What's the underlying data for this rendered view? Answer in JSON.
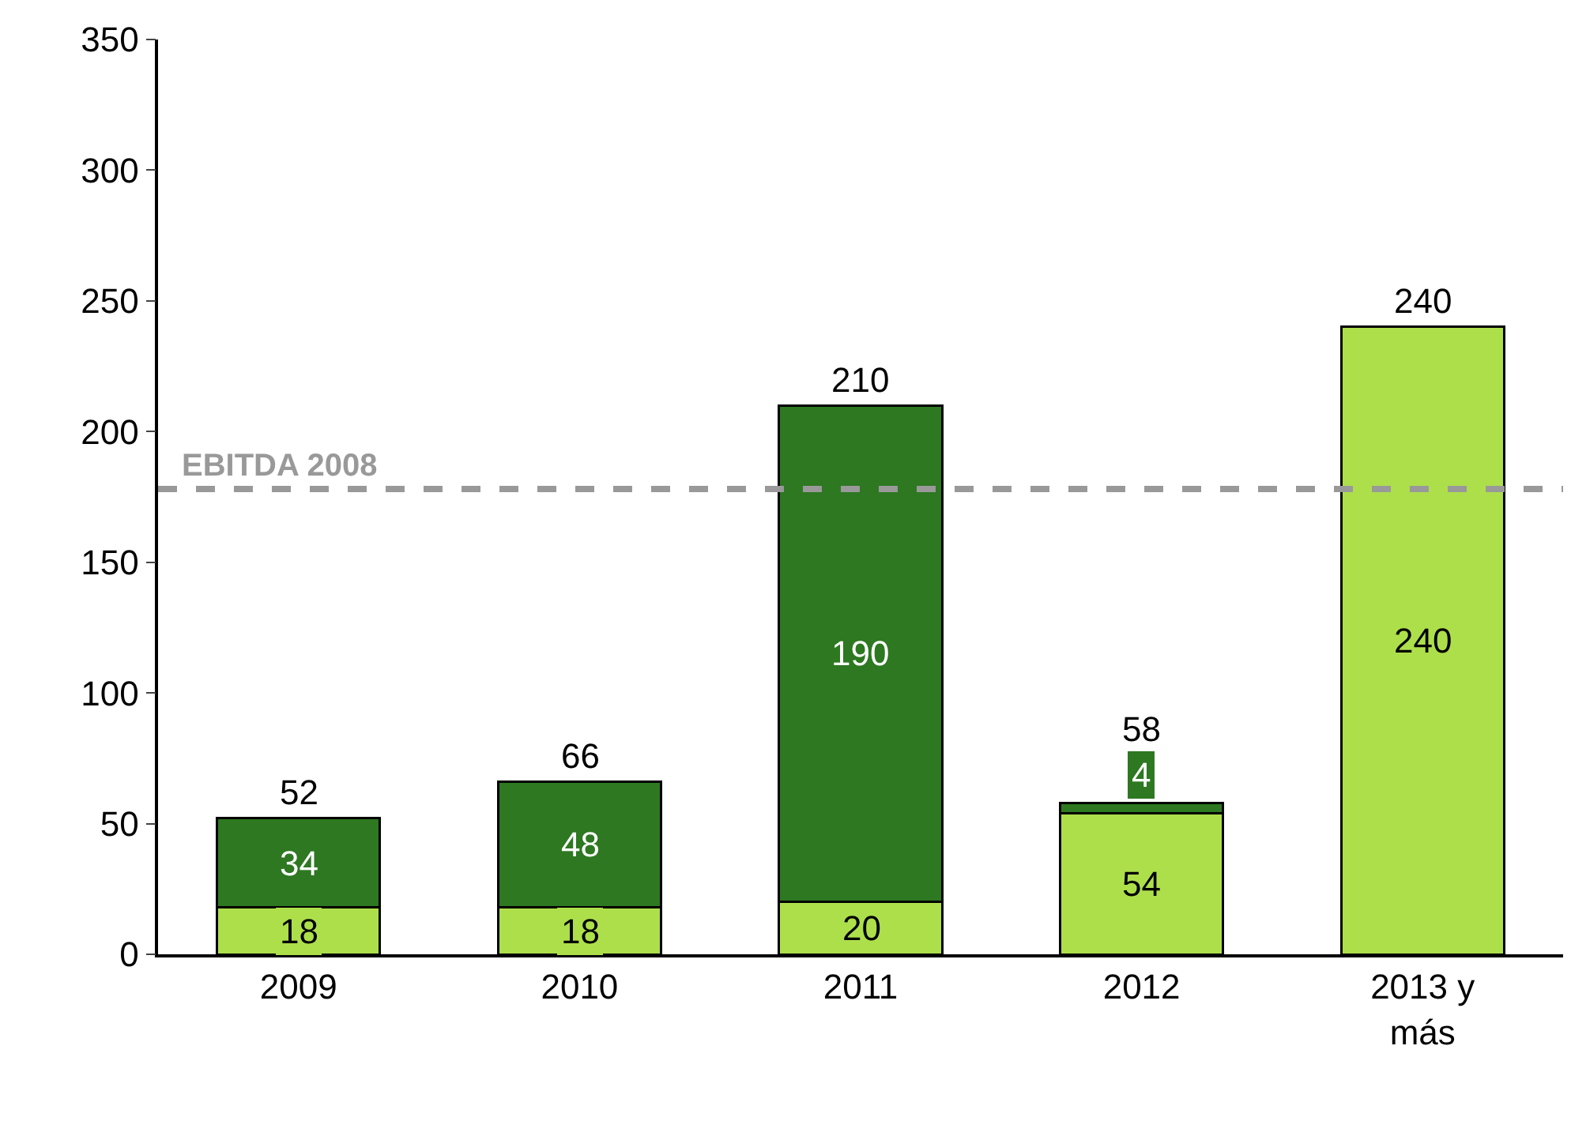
{
  "chart_data": {
    "type": "bar",
    "stacked": true,
    "categories": [
      "2009",
      "2010",
      "2011",
      "2012",
      "2013 y más"
    ],
    "series": [
      {
        "color": "#addf4b",
        "values": [
          18,
          18,
          20,
          54,
          240
        ]
      },
      {
        "color": "#2d7821",
        "values": [
          34,
          48,
          190,
          4,
          null
        ]
      }
    ],
    "data_labels": true,
    "totals": [
      "52",
      "66",
      "210",
      "58",
      "240"
    ],
    "ylim": [
      0,
      350
    ],
    "yticks": [
      0,
      50,
      100,
      150,
      200,
      250,
      300,
      350
    ],
    "ref_lines": [
      {
        "axis": "y",
        "value": 178,
        "label": "EBITDA 2008",
        "color": "#999999",
        "line_style": "dashed"
      }
    ]
  }
}
